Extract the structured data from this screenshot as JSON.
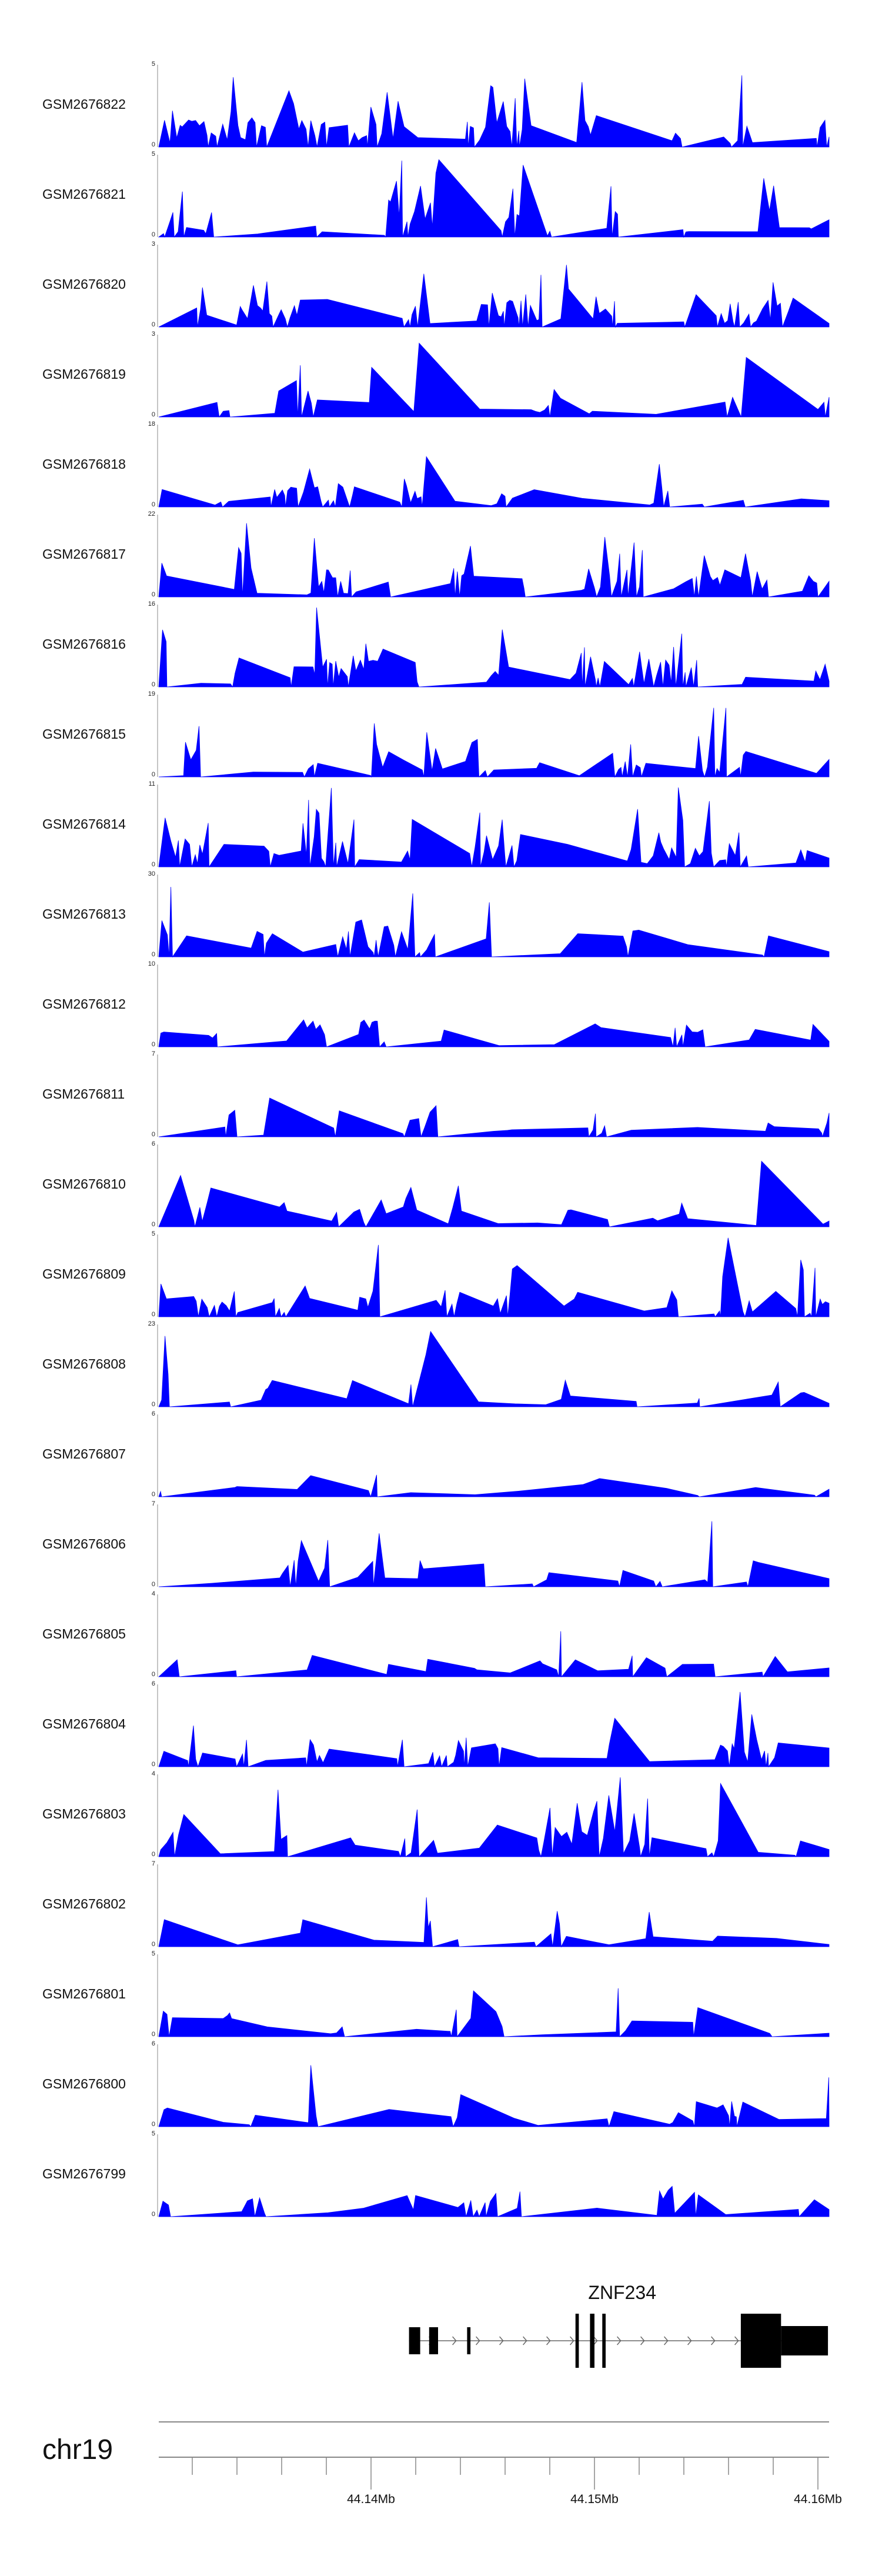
{
  "chart_data": {
    "type": "area",
    "color": "#0000ff",
    "region": {
      "chromosome": "chr19",
      "start_mb": 44.1305,
      "end_mb": 44.1605
    },
    "tracks": [
      {
        "name": "GSM2676822",
        "ymax": "5",
        "ymin": "0",
        "seed": 11
      },
      {
        "name": "GSM2676821",
        "ymax": "5",
        "ymin": "0",
        "seed": 23
      },
      {
        "name": "GSM2676820",
        "ymax": "3",
        "ymin": "0",
        "seed": 37
      },
      {
        "name": "GSM2676819",
        "ymax": "3",
        "ymin": "0",
        "seed": 41
      },
      {
        "name": "GSM2676818",
        "ymax": "18",
        "ymin": "0",
        "seed": 53
      },
      {
        "name": "GSM2676817",
        "ymax": "22",
        "ymin": "0",
        "seed": 67
      },
      {
        "name": "GSM2676816",
        "ymax": "16",
        "ymin": "0",
        "seed": 71
      },
      {
        "name": "GSM2676815",
        "ymax": "19",
        "ymin": "0",
        "seed": 83
      },
      {
        "name": "GSM2676814",
        "ymax": "11",
        "ymin": "0",
        "seed": 97
      },
      {
        "name": "GSM2676813",
        "ymax": "30",
        "ymin": "0",
        "seed": 101
      },
      {
        "name": "GSM2676812",
        "ymax": "10",
        "ymin": "0",
        "seed": 113
      },
      {
        "name": "GSM2676811",
        "ymax": "7",
        "ymin": "0",
        "seed": 127
      },
      {
        "name": "GSM2676810",
        "ymax": "6",
        "ymin": "0",
        "seed": 131
      },
      {
        "name": "GSM2676809",
        "ymax": "5",
        "ymin": "0",
        "seed": 149
      },
      {
        "name": "GSM2676808",
        "ymax": "23",
        "ymin": "0",
        "seed": 151
      },
      {
        "name": "GSM2676807",
        "ymax": "6",
        "ymin": "0",
        "seed": 163
      },
      {
        "name": "GSM2676806",
        "ymax": "7",
        "ymin": "0",
        "seed": 173
      },
      {
        "name": "GSM2676805",
        "ymax": "4",
        "ymin": "0",
        "seed": 181
      },
      {
        "name": "GSM2676804",
        "ymax": "6",
        "ymin": "0",
        "seed": 193
      },
      {
        "name": "GSM2676803",
        "ymax": "4",
        "ymin": "0",
        "seed": 197
      },
      {
        "name": "GSM2676802",
        "ymax": "7",
        "ymin": "0",
        "seed": 211
      },
      {
        "name": "GSM2676801",
        "ymax": "5",
        "ymin": "0",
        "seed": 223
      },
      {
        "name": "GSM2676800",
        "ymax": "6",
        "ymin": "0",
        "seed": 227
      },
      {
        "name": "GSM2676799",
        "ymax": "5",
        "ymin": "0",
        "seed": 239
      }
    ],
    "gene": {
      "name": "ZNF234",
      "strand": "+",
      "exons_mb": [
        [
          44.1417,
          44.1422
        ],
        [
          44.1426,
          44.143
        ],
        [
          44.1443,
          44.14445
        ],
        [
          44.14915,
          44.1493
        ],
        [
          44.1498,
          44.15
        ],
        [
          44.15035,
          44.1505
        ],
        [
          44.15655,
          44.15835
        ],
        [
          44.15835,
          44.16045
        ]
      ],
      "intron_mb": [
        44.1417,
        44.16045
      ]
    },
    "axis": {
      "label": "chr19",
      "tick_labels": [
        {
          "pos_mb": 44.14,
          "label": "44.14Mb"
        },
        {
          "pos_mb": 44.15,
          "label": "44.15Mb"
        },
        {
          "pos_mb": 44.16,
          "label": "44.16Mb"
        }
      ],
      "minor_tick_step_mb": 0.002
    }
  }
}
